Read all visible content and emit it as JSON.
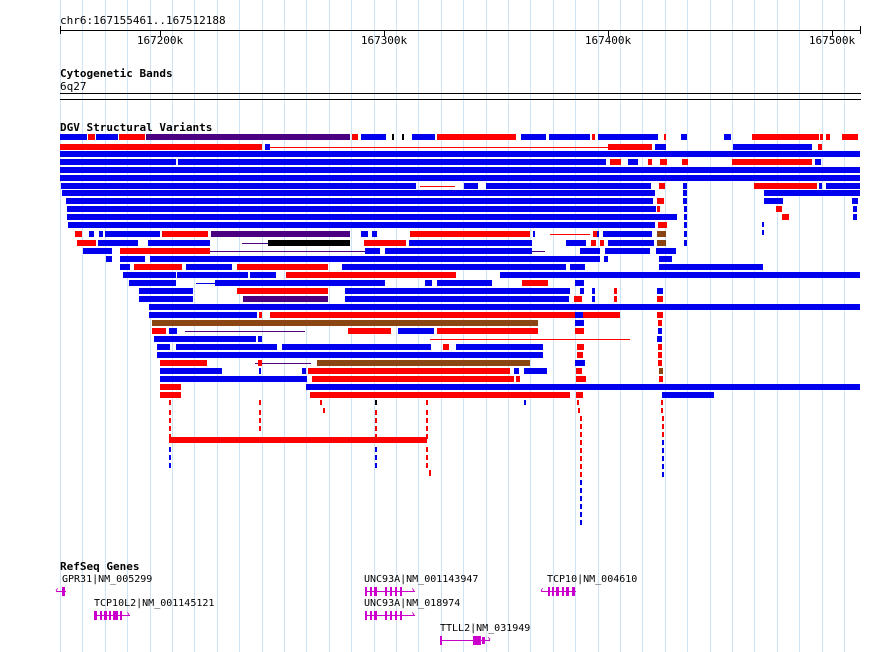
{
  "location": "chr6:167155461..167512188",
  "ruler": {
    "ticks": [
      "167200k",
      "167300k",
      "167400k",
      "167500k"
    ]
  },
  "tracks": {
    "cytobands": {
      "title": "Cytogenetic Bands",
      "band": "6q27"
    },
    "dgv": {
      "title": "DGV Structural Variants"
    },
    "refseq": {
      "title": "RefSeq Genes",
      "genes": [
        {
          "label": "GPR31|NM_005299"
        },
        {
          "label": "TCP10L2|NM_001145121"
        },
        {
          "label": "UNC93A|NM_001143947"
        },
        {
          "label": "UNC93A|NM_018974"
        },
        {
          "label": "TTLL2|NM_031949"
        },
        {
          "label": "TCP10|NM_004610"
        }
      ]
    }
  },
  "colors": {
    "gain": "#0000ee",
    "loss": "#ff0000",
    "inversion": "#4b0082",
    "complex": "#8b4513",
    "gene": "#cc00cc",
    "grid": "#cfe3f6"
  }
}
